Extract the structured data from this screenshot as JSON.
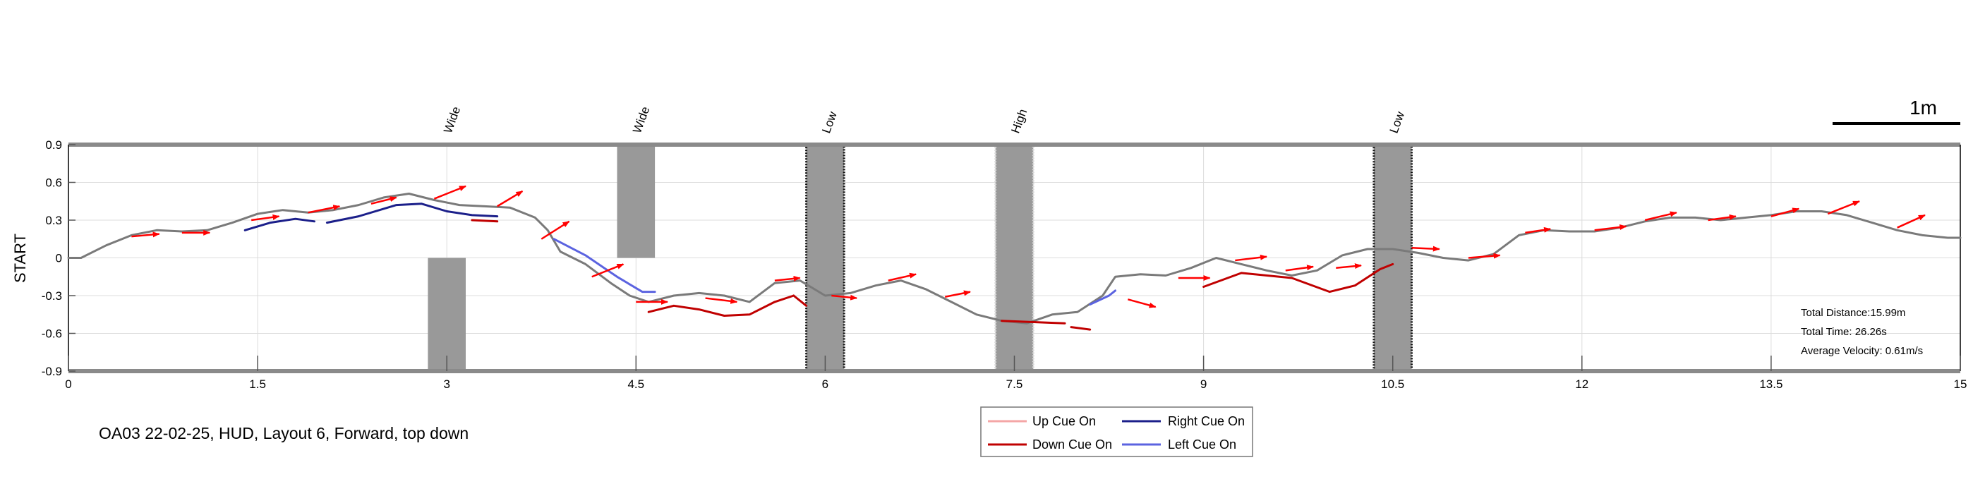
{
  "chart_data": {
    "type": "line",
    "title": "",
    "xlabel": "",
    "ylabel": "START",
    "xlim": [
      0,
      15
    ],
    "ylim": [
      -0.9,
      0.9
    ],
    "x_ticks": [
      "0",
      "1.5",
      "3",
      "4.5",
      "6",
      "7.5",
      "9",
      "10.5",
      "12",
      "13.5",
      "15"
    ],
    "y_ticks": [
      "0.9",
      "0.6",
      "0.3",
      "0",
      "-0.3",
      "-0.6",
      "-0.9"
    ],
    "grid": true,
    "scale_bar_label": "1m",
    "caption": "OA03 22-02-25, HUD, Layout 6, Forward, top down",
    "stats": [
      "Total Distance:15.99m",
      "Total Time: 26.26s",
      "Average Velocity: 0.61m/s"
    ],
    "legend": {
      "placement": "bottom-center",
      "items": [
        {
          "label": "Up Cue On",
          "color": "#f4a6a6"
        },
        {
          "label": "Right Cue On",
          "color": "#1b1f8a"
        },
        {
          "label": "Down Cue On",
          "color": "#c00000"
        },
        {
          "label": "Left Cue On",
          "color": "#5b63e0"
        }
      ]
    },
    "obstacles": [
      {
        "label": "Wide",
        "x": [
          2.85,
          3.15
        ],
        "y": [
          -0.9,
          0.0
        ],
        "style": "solid"
      },
      {
        "label": "Wide",
        "x": [
          4.35,
          4.65
        ],
        "y": [
          0.0,
          0.9
        ],
        "style": "solid"
      },
      {
        "label": "Low",
        "x": [
          5.85,
          6.15
        ],
        "y": [
          -0.9,
          0.9
        ],
        "style": "dotted-dark"
      },
      {
        "label": "High",
        "x": [
          7.35,
          7.65
        ],
        "y": [
          -0.9,
          0.9
        ],
        "style": "dotted-light"
      },
      {
        "label": "Low",
        "x": [
          10.35,
          10.65
        ],
        "y": [
          -0.9,
          0.9
        ],
        "style": "dotted-dark"
      }
    ],
    "series": [
      {
        "color": "#7a7a7a",
        "x": [
          0,
          0.1,
          0.3,
          0.5,
          0.7,
          0.9,
          1.1,
          1.3,
          1.5,
          1.7,
          1.9,
          2.1,
          2.3,
          2.5,
          2.7,
          2.9,
          3.1,
          3.3,
          3.5,
          3.7,
          3.8,
          3.9,
          4.1,
          4.3,
          4.45,
          4.6,
          4.8,
          5.0,
          5.2,
          5.4,
          5.6,
          5.8,
          6.0,
          6.2,
          6.4,
          6.6,
          6.8,
          7.0,
          7.2,
          7.4,
          7.6,
          7.8,
          8.0,
          8.2,
          8.3,
          8.5,
          8.7,
          8.9,
          9.1,
          9.3,
          9.5,
          9.7,
          9.9,
          10.1,
          10.3,
          10.5,
          10.7,
          10.9,
          11.1,
          11.3,
          11.5,
          11.7,
          11.9,
          12.1,
          12.3,
          12.5,
          12.7,
          12.9,
          13.1,
          13.3,
          13.5,
          13.7,
          13.9,
          14.1,
          14.3,
          14.5,
          14.7,
          14.9,
          15.0
        ],
        "values": [
          0.0,
          0.0,
          0.1,
          0.18,
          0.22,
          0.21,
          0.22,
          0.28,
          0.35,
          0.38,
          0.36,
          0.38,
          0.42,
          0.48,
          0.51,
          0.46,
          0.42,
          0.41,
          0.4,
          0.32,
          0.22,
          0.05,
          -0.05,
          -0.2,
          -0.3,
          -0.35,
          -0.3,
          -0.28,
          -0.3,
          -0.35,
          -0.2,
          -0.18,
          -0.3,
          -0.28,
          -0.22,
          -0.18,
          -0.25,
          -0.35,
          -0.45,
          -0.5,
          -0.52,
          -0.45,
          -0.43,
          -0.3,
          -0.15,
          -0.13,
          -0.14,
          -0.08,
          0.0,
          -0.05,
          -0.1,
          -0.14,
          -0.1,
          0.02,
          0.07,
          0.07,
          0.04,
          0.0,
          -0.02,
          0.03,
          0.18,
          0.22,
          0.21,
          0.21,
          0.24,
          0.29,
          0.32,
          0.32,
          0.3,
          0.32,
          0.34,
          0.37,
          0.37,
          0.34,
          0.28,
          0.22,
          0.18,
          0.16,
          0.16
        ]
      }
    ],
    "cue_segments": [
      {
        "cue": "Right Cue On",
        "x": [
          1.4,
          1.6,
          1.8,
          1.95
        ],
        "values": [
          0.22,
          0.28,
          0.31,
          0.29
        ]
      },
      {
        "cue": "Right Cue On",
        "x": [
          2.05,
          2.3,
          2.6,
          2.8,
          3.0,
          3.2,
          3.4
        ],
        "values": [
          0.28,
          0.33,
          0.42,
          0.43,
          0.37,
          0.34,
          0.33
        ]
      },
      {
        "cue": "Down Cue On",
        "x": [
          3.2,
          3.4
        ],
        "values": [
          0.3,
          0.29
        ]
      },
      {
        "cue": "Left Cue On",
        "x": [
          3.85,
          4.1,
          4.35,
          4.55,
          4.65
        ],
        "values": [
          0.15,
          0.02,
          -0.15,
          -0.27,
          -0.27
        ]
      },
      {
        "cue": "Down Cue On",
        "x": [
          4.6,
          4.8,
          5.0,
          5.2,
          5.4,
          5.6,
          5.75
        ],
        "values": [
          -0.43,
          -0.38,
          -0.41,
          -0.46,
          -0.45,
          -0.35,
          -0.3
        ]
      },
      {
        "cue": "Down Cue On",
        "x": [
          5.75,
          5.85
        ],
        "values": [
          -0.3,
          -0.38
        ]
      },
      {
        "cue": "Down Cue On",
        "x": [
          7.4,
          7.9
        ],
        "values": [
          -0.5,
          -0.52
        ]
      },
      {
        "cue": "Down Cue On",
        "x": [
          7.95,
          8.1
        ],
        "values": [
          -0.55,
          -0.57
        ]
      },
      {
        "cue": "Left Cue On",
        "x": [
          8.1,
          8.25,
          8.3
        ],
        "values": [
          -0.37,
          -0.3,
          -0.26
        ]
      },
      {
        "cue": "Down Cue On",
        "x": [
          9.0,
          9.3,
          9.7,
          10.0,
          10.2,
          10.4,
          10.5
        ],
        "values": [
          -0.23,
          -0.12,
          -0.16,
          -0.27,
          -0.22,
          -0.09,
          -0.05
        ]
      }
    ],
    "direction_arrows": [
      {
        "x": 0.5,
        "y": 0.17,
        "dx": 0.22,
        "dy": 0.02
      },
      {
        "x": 0.9,
        "y": 0.2,
        "dx": 0.22,
        "dy": 0.0
      },
      {
        "x": 1.45,
        "y": 0.3,
        "dx": 0.22,
        "dy": 0.03
      },
      {
        "x": 1.9,
        "y": 0.36,
        "dx": 0.25,
        "dy": 0.05
      },
      {
        "x": 2.4,
        "y": 0.43,
        "dx": 0.2,
        "dy": 0.05
      },
      {
        "x": 2.9,
        "y": 0.47,
        "dx": 0.25,
        "dy": 0.1
      },
      {
        "x": 3.4,
        "y": 0.41,
        "dx": 0.2,
        "dy": 0.12
      },
      {
        "x": 3.75,
        "y": 0.15,
        "dx": 0.22,
        "dy": 0.14
      },
      {
        "x": 4.15,
        "y": -0.15,
        "dx": 0.25,
        "dy": 0.1
      },
      {
        "x": 4.5,
        "y": -0.35,
        "dx": 0.25,
        "dy": 0.0
      },
      {
        "x": 5.05,
        "y": -0.32,
        "dx": 0.25,
        "dy": -0.03
      },
      {
        "x": 5.6,
        "y": -0.18,
        "dx": 0.2,
        "dy": 0.02
      },
      {
        "x": 6.05,
        "y": -0.3,
        "dx": 0.2,
        "dy": -0.02
      },
      {
        "x": 6.5,
        "y": -0.18,
        "dx": 0.22,
        "dy": 0.05
      },
      {
        "x": 6.95,
        "y": -0.31,
        "dx": 0.2,
        "dy": 0.04
      },
      {
        "x": 8.4,
        "y": -0.33,
        "dx": 0.22,
        "dy": -0.06
      },
      {
        "x": 8.8,
        "y": -0.16,
        "dx": 0.25,
        "dy": 0.0
      },
      {
        "x": 9.25,
        "y": -0.02,
        "dx": 0.25,
        "dy": 0.03
      },
      {
        "x": 9.65,
        "y": -0.1,
        "dx": 0.22,
        "dy": 0.03
      },
      {
        "x": 10.05,
        "y": -0.08,
        "dx": 0.2,
        "dy": 0.02
      },
      {
        "x": 10.65,
        "y": 0.08,
        "dx": 0.22,
        "dy": -0.01
      },
      {
        "x": 11.1,
        "y": 0.0,
        "dx": 0.25,
        "dy": 0.02
      },
      {
        "x": 11.55,
        "y": 0.2,
        "dx": 0.2,
        "dy": 0.03
      },
      {
        "x": 12.1,
        "y": 0.22,
        "dx": 0.25,
        "dy": 0.03
      },
      {
        "x": 12.5,
        "y": 0.3,
        "dx": 0.25,
        "dy": 0.06
      },
      {
        "x": 13.0,
        "y": 0.3,
        "dx": 0.22,
        "dy": 0.03
      },
      {
        "x": 13.5,
        "y": 0.33,
        "dx": 0.22,
        "dy": 0.06
      },
      {
        "x": 13.95,
        "y": 0.35,
        "dx": 0.25,
        "dy": 0.1
      },
      {
        "x": 14.5,
        "y": 0.24,
        "dx": 0.22,
        "dy": 0.1
      }
    ]
  },
  "colors": {
    "trajectory": "#7a7a7a",
    "arrow": "#ff0000",
    "obstacle_fill": "#999999",
    "frame_band": "#8a8a8a",
    "grid": "#dcdcdc"
  }
}
